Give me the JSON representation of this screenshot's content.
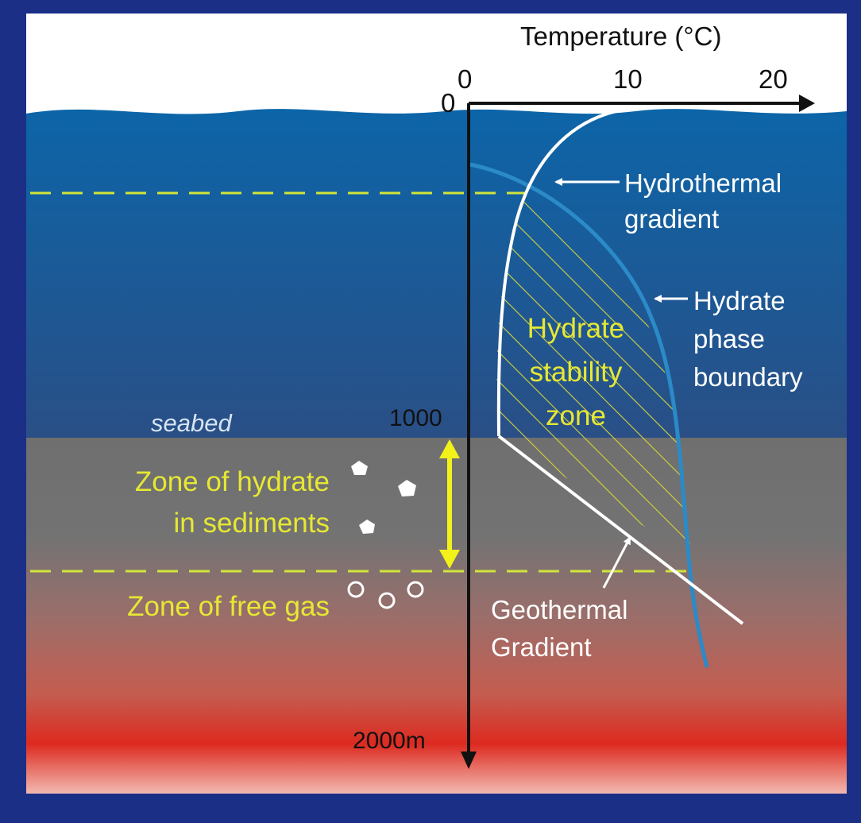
{
  "axis": {
    "temperature_title": "Temperature (°C)",
    "temperature_ticks": [
      "0",
      "10",
      "20"
    ],
    "depth_ticks": [
      "0",
      "1000",
      "2000m"
    ]
  },
  "labels": {
    "seabed": "seabed",
    "hydrothermal_gradient": [
      "Hydrothermal",
      "gradient"
    ],
    "hydrate_phase_boundary": [
      "Hydrate",
      "phase",
      "boundary"
    ],
    "hydrate_stability_zone": [
      "Hydrate",
      "stability",
      "zone"
    ],
    "zone_of_hydrate": [
      "Zone of hydrate",
      "in sediments"
    ],
    "zone_of_free_gas": "Zone of free gas",
    "geothermal_gradient": [
      "Geothermal",
      "Gradient"
    ]
  },
  "colors": {
    "background": "#1b2f86",
    "frame": "#ffffff",
    "sea_top": "#0c65a8",
    "sea_bottom": "#27558a",
    "sediment": "#6f6f6f",
    "deep_red": "#d8201c",
    "curve_white": "#ffffff",
    "phase_boundary": "#2b8ac8",
    "yellow_label": "#e6e833",
    "dashed_line": "#cfe53a",
    "hatch": "#d4d43a"
  }
}
